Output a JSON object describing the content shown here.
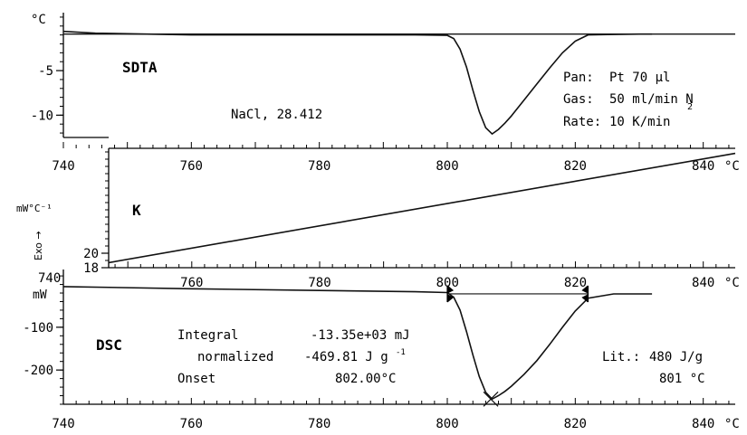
{
  "chart_data": [
    {
      "type": "line",
      "title": "SDTA",
      "sample_label": "NaCl, 28.412",
      "y_unit_label": "°C",
      "ylim": [
        -12.5,
        1.5
      ],
      "yticks": [
        {
          "value": -5,
          "label": "-5"
        },
        {
          "value": -10,
          "label": "-10"
        }
      ],
      "xlim": [
        740,
        845
      ],
      "info": {
        "pan_label": "Pan:",
        "pan_value": "Pt 70 µl",
        "gas_label": "Gas:",
        "gas_value": "50 ml/min N",
        "gas_subscript": "2",
        "rate_label": "Rate:",
        "rate_value": "10 K/min"
      },
      "series": [
        {
          "x": [
            740,
            745,
            760,
            780,
            795,
            800,
            801,
            802,
            803,
            804,
            805,
            806,
            807,
            808,
            809,
            810,
            812,
            814,
            816,
            818,
            820,
            822,
            826,
            830,
            832
          ],
          "y": [
            -0.6,
            -0.8,
            -1.0,
            -1.0,
            -1.0,
            -1.05,
            -1.4,
            -2.6,
            -4.6,
            -7.2,
            -9.6,
            -11.4,
            -12.1,
            -11.6,
            -10.9,
            -10.1,
            -8.3,
            -6.5,
            -4.7,
            -3.0,
            -1.7,
            -1.0,
            -0.95,
            -0.9,
            -0.9
          ]
        },
        {
          "x": [
            740,
            845
          ],
          "y": [
            -0.9,
            -0.9
          ]
        }
      ]
    },
    {
      "type": "line",
      "title": "K",
      "y_unit_label": "mW°C⁻¹",
      "side_label": "Exo →",
      "ylim": [
        18,
        34.5
      ],
      "yticks": [
        {
          "value": 20,
          "label": "20"
        },
        {
          "value": 18,
          "label": "18"
        }
      ],
      "xlim": [
        747,
        845
      ],
      "xticks": [
        {
          "value": 760,
          "label": "760"
        },
        {
          "value": 780,
          "label": "780"
        },
        {
          "value": 800,
          "label": "800"
        },
        {
          "value": 820,
          "label": "820"
        },
        {
          "value": 840,
          "label": "840"
        }
      ],
      "x_unit_label": "°C",
      "series": [
        {
          "x": [
            747,
            845
          ],
          "y": [
            18.7,
            33.8
          ]
        }
      ]
    },
    {
      "type": "line",
      "title": "DSC",
      "y_unit_label": "mW",
      "ylim": [
        -280,
        35
      ],
      "yticks": [
        {
          "value": -100,
          "label": "-100"
        },
        {
          "value": -200,
          "label": "-200"
        }
      ],
      "xlim": [
        740,
        845
      ],
      "xticks": [
        {
          "value": 740,
          "label": "740"
        },
        {
          "value": 760,
          "label": "760"
        },
        {
          "value": 780,
          "label": "780"
        },
        {
          "value": 800,
          "label": "800"
        },
        {
          "value": 820,
          "label": "820"
        },
        {
          "value": 840,
          "label": "840"
        }
      ],
      "x_unit_label": "°C",
      "results": {
        "integral_label": "Integral",
        "integral_value": "-13.35e+03 mJ",
        "normalized_label": "normalized",
        "normalized_value": "-469.81 J g",
        "normalized_exp": "-1",
        "onset_label": "Onset",
        "onset_value": "802.00°C",
        "lit_label": "Lit.:",
        "lit_value": "480 J/g",
        "lit_temp": "801 °C"
      },
      "baseline": {
        "x": [
          800,
          822
        ],
        "y": [
          -22,
          -22
        ]
      },
      "series": [
        {
          "x": [
            740,
            760,
            780,
            795,
            800,
            801,
            802,
            803,
            804,
            805,
            806,
            807,
            808,
            809,
            810,
            812,
            814,
            816,
            818,
            820,
            822,
            826,
            832
          ],
          "y": [
            -5,
            -10,
            -14,
            -17,
            -19,
            -30,
            -60,
            -110,
            -165,
            -215,
            -252,
            -268,
            -260,
            -250,
            -238,
            -210,
            -178,
            -140,
            -100,
            -62,
            -32,
            -22,
            -22
          ]
        }
      ]
    }
  ],
  "top_x_labels": [
    {
      "value": 740,
      "label": "740"
    },
    {
      "value": 760,
      "label": "760"
    },
    {
      "value": 780,
      "label": "780"
    },
    {
      "value": 800,
      "label": "800"
    },
    {
      "value": 820,
      "label": "820"
    },
    {
      "value": 840,
      "label": "840"
    }
  ],
  "top_x_unit_label": "°C",
  "mid_left_x_label": "740",
  "sdta_zero_unit": "°C"
}
